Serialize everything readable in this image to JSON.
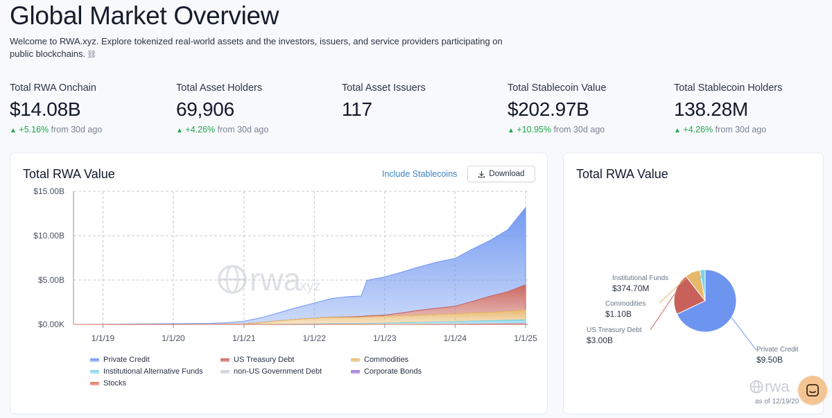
{
  "page": {
    "title": "Global Market Overview",
    "intro": "Welcome to RWA.xyz. Explore tokenized real-world assets and the investors, issuers, and service providers participating on public blockchains.",
    "link_icon": "link-icon"
  },
  "stats": [
    {
      "label": "Total RWA Onchain",
      "value": "$14.08B",
      "change": "+5.16%",
      "period": "from 30d ago"
    },
    {
      "label": "Total Asset Holders",
      "value": "69,906",
      "change": "+4.26%",
      "period": "from 30d ago"
    },
    {
      "label": "Total Asset Issuers",
      "value": "117"
    },
    {
      "label": "Total Stablecoin Value",
      "value": "$202.97B",
      "change": "+10.95%",
      "period": "from 30d ago"
    },
    {
      "label": "Total Stablecoin Holders",
      "value": "138.28M",
      "change": "+4.26%",
      "period": "from 30d ago"
    }
  ],
  "area_card": {
    "title": "Total RWA Value",
    "include_link": "Include Stablecoins",
    "download_label": "Download",
    "watermark_text": "rwa",
    "watermark_suffix": ".xyz"
  },
  "pie_card": {
    "title": "Total RWA Value",
    "watermark_text": "rwa",
    "as_of": "as of 12/19/20"
  },
  "colors": {
    "private_credit": "#6d95f0",
    "us_treasury": "#c8615a",
    "commodities": "#e8b86a",
    "inst_funds": "#7fd3e6",
    "non_us_gov": "#c8cdd6",
    "corp_bonds": "#9b6fd6",
    "stocks": "#e0735a",
    "positive": "#1fa64a",
    "link": "#3b82c4"
  },
  "chart_data": [
    {
      "type": "area",
      "title": "Total RWA Value",
      "stacked": true,
      "x_ticks": [
        "1/1/19",
        "1/1/20",
        "1/1/21",
        "1/1/22",
        "1/1/23",
        "1/1/24",
        "1/1/25"
      ],
      "y_ticks": [
        "$0.00K",
        "$5.00B",
        "$10.00B",
        "$15.00B"
      ],
      "ylim": [
        0,
        15
      ],
      "y_unit": "B USD",
      "grid": true,
      "legend_position": "bottom",
      "x": [
        "2018-08",
        "2019-01",
        "2019-07",
        "2020-01",
        "2020-07",
        "2020-10",
        "2021-01",
        "2021-04",
        "2021-07",
        "2021-10",
        "2022-01",
        "2022-04",
        "2022-07",
        "2022-09",
        "2022-10",
        "2023-01",
        "2023-04",
        "2023-07",
        "2023-10",
        "2024-01",
        "2024-04",
        "2024-07",
        "2024-10",
        "2025-01"
      ],
      "series": [
        {
          "name": "Private Credit",
          "values": [
            0.0,
            0.02,
            0.05,
            0.08,
            0.12,
            0.18,
            0.3,
            0.55,
            0.9,
            1.3,
            1.7,
            2.1,
            2.3,
            2.3,
            4.0,
            4.3,
            4.6,
            4.9,
            5.2,
            5.4,
            5.9,
            6.3,
            7.0,
            8.7
          ]
        },
        {
          "name": "US Treasury Debt",
          "values": [
            0.0,
            0.0,
            0.0,
            0.0,
            0.0,
            0.0,
            0.0,
            0.0,
            0.0,
            0.0,
            0.01,
            0.02,
            0.05,
            0.08,
            0.1,
            0.12,
            0.3,
            0.55,
            0.7,
            0.85,
            1.3,
            1.8,
            2.2,
            2.85
          ]
        },
        {
          "name": "Commodities",
          "values": [
            0.0,
            0.0,
            0.0,
            0.0,
            0.0,
            0.01,
            0.05,
            0.2,
            0.4,
            0.55,
            0.65,
            0.7,
            0.7,
            0.72,
            0.75,
            0.78,
            0.8,
            0.82,
            0.85,
            0.88,
            0.92,
            0.95,
            1.0,
            1.1
          ]
        },
        {
          "name": "Institutional Alternative Funds",
          "values": [
            0.0,
            0.0,
            0.0,
            0.0,
            0.0,
            0.0,
            0.0,
            0.01,
            0.02,
            0.03,
            0.05,
            0.1,
            0.1,
            0.1,
            0.12,
            0.15,
            0.2,
            0.22,
            0.25,
            0.27,
            0.3,
            0.33,
            0.35,
            0.37
          ]
        },
        {
          "name": "non-US Government Debt",
          "values": [
            0.0,
            0.0,
            0.0,
            0.0,
            0.0,
            0.0,
            0.0,
            0.0,
            0.0,
            0.0,
            0.0,
            0.0,
            0.0,
            0.0,
            0.0,
            0.0,
            0.0,
            0.01,
            0.02,
            0.03,
            0.05,
            0.06,
            0.08,
            0.1
          ]
        },
        {
          "name": "Corporate Bonds",
          "values": [
            0.0,
            0.0,
            0.0,
            0.0,
            0.0,
            0.0,
            0.0,
            0.0,
            0.0,
            0.0,
            0.0,
            0.0,
            0.0,
            0.0,
            0.0,
            0.0,
            0.0,
            0.0,
            0.01,
            0.01,
            0.02,
            0.02,
            0.03,
            0.03
          ]
        },
        {
          "name": "Stocks",
          "values": [
            0.0,
            0.0,
            0.0,
            0.0,
            0.0,
            0.0,
            0.0,
            0.0,
            0.0,
            0.0,
            0.0,
            0.0,
            0.0,
            0.0,
            0.0,
            0.0,
            0.0,
            0.0,
            0.0,
            0.0,
            0.01,
            0.01,
            0.02,
            0.02
          ]
        }
      ]
    },
    {
      "type": "pie",
      "title": "Total RWA Value",
      "slices": [
        {
          "name": "Private Credit",
          "value": 9.5,
          "label": "$9.50B"
        },
        {
          "name": "US Treasury Debt",
          "value": 3.0,
          "label": "$3.00B"
        },
        {
          "name": "Commodities",
          "value": 1.1,
          "label": "$1.10B"
        },
        {
          "name": "Institutional Funds",
          "value": 0.3747,
          "label": "$374.70M"
        }
      ]
    }
  ]
}
